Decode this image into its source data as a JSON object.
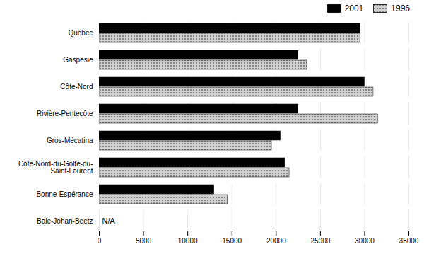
{
  "chart_data": {
    "type": "bar",
    "orientation": "horizontal",
    "categories": [
      "Baie-Johan-Beetz",
      "Bonne-Espérance",
      "Côte-Nord-du-Golfe-du-\nSaint-Laurent",
      "Gros-Mécatina",
      "Rivière-Pentecôte",
      "Côte-Nord",
      "Gaspésie",
      "Québec"
    ],
    "series": [
      {
        "name": "2001",
        "color": "#000000",
        "values": [
          null,
          13000,
          21000,
          20500,
          22500,
          30000,
          22500,
          29500
        ]
      },
      {
        "name": "1996",
        "color": "#d0d0d0",
        "values": [
          null,
          14500,
          21500,
          19500,
          31500,
          31000,
          23500,
          29500
        ]
      }
    ],
    "xlim": [
      0,
      35000
    ],
    "xticks": [
      0,
      5000,
      10000,
      15000,
      20000,
      25000,
      30000,
      35000
    ],
    "grid": true,
    "legend": "upper right",
    "annotations": [
      {
        "text": "N/A",
        "category": "Baie-Johan-Beetz"
      }
    ]
  }
}
